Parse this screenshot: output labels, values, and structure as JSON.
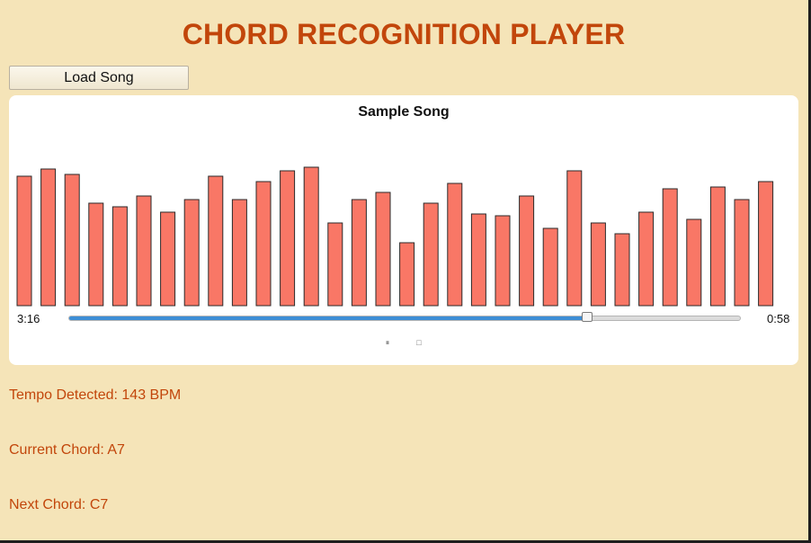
{
  "app": {
    "title": "CHORD RECOGNITION PLAYER",
    "load_button_label": "Load Song"
  },
  "player": {
    "song_title": "Sample Song",
    "elapsed_time": "3:16",
    "remaining_time": "0:58",
    "progress_fraction": 0.771,
    "pause_icon": "pause-icon",
    "stop_icon": "stop-icon",
    "pause_glyph": "⏸",
    "stop_glyph": "□"
  },
  "chart_data": {
    "type": "bar",
    "values": [
      72,
      76,
      73,
      57,
      55,
      61,
      52,
      59,
      72,
      59,
      69,
      75,
      77,
      46,
      59,
      63,
      35,
      57,
      68,
      51,
      50,
      61,
      43,
      75,
      46,
      40,
      52,
      65,
      48,
      66,
      59,
      69
    ],
    "ylim": [
      0,
      100
    ],
    "bar_color": "#f97766",
    "bar_stroke": "#2a2a2a"
  },
  "info": {
    "tempo": "Tempo Detected: 143 BPM",
    "current_chord": "Current Chord: A7",
    "next_chord": "Next Chord: C7"
  },
  "colors": {
    "accent": "#c2460b",
    "background": "#f5e4b8",
    "progress": "#3d8ed6"
  }
}
